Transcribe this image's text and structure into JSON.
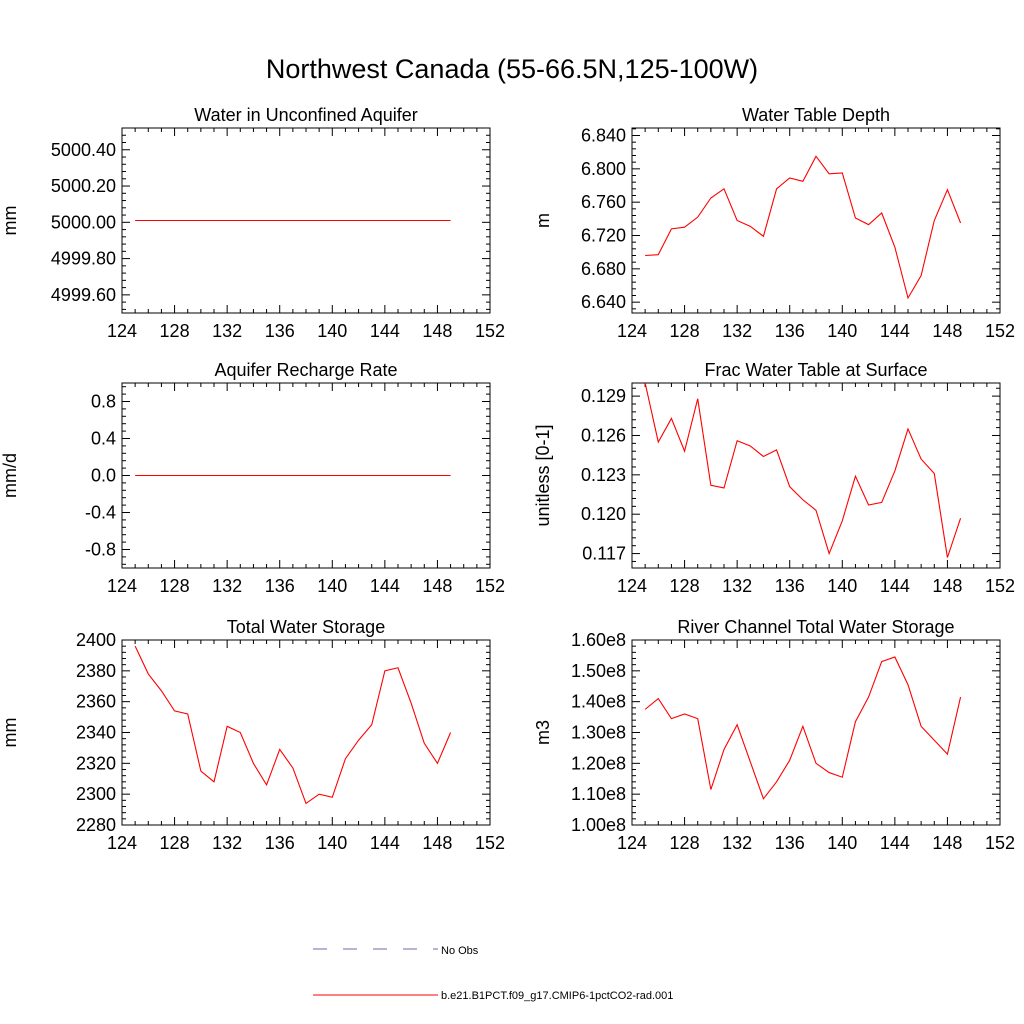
{
  "figure": {
    "title": "Northwest Canada (55-66.5N,125-100W)",
    "legend": {
      "obs_label": "No Obs",
      "model_label": "b.e21.B1PCT.f09_g17.CMIP6-1pctCO2-rad.001",
      "model_color": "#ff0000",
      "obs_color": "#6a6aa8"
    }
  },
  "chart_data": [
    {
      "type": "line",
      "title": "Water in Unconfined Aquifer",
      "ylabel": "mm",
      "xlim": [
        124,
        152
      ],
      "xticks": [
        124,
        128,
        132,
        136,
        140,
        144,
        148,
        152
      ],
      "ylim": [
        4999.5,
        5000.52
      ],
      "yticks": [
        4999.6,
        4999.8,
        5000.0,
        5000.2,
        5000.4
      ],
      "ytick_labels": [
        "4999.60",
        "4999.80",
        "5000.00",
        "5000.20",
        "5000.40"
      ],
      "series": [
        {
          "x": [
            125,
            126,
            127,
            128,
            129,
            130,
            131,
            132,
            133,
            134,
            135,
            136,
            137,
            138,
            139,
            140,
            141,
            142,
            143,
            144,
            145,
            146,
            147,
            148,
            149
          ],
          "values": [
            5000.01,
            5000.01,
            5000.01,
            5000.01,
            5000.01,
            5000.01,
            5000.01,
            5000.01,
            5000.01,
            5000.01,
            5000.01,
            5000.01,
            5000.01,
            5000.01,
            5000.01,
            5000.01,
            5000.01,
            5000.01,
            5000.01,
            5000.01,
            5000.01,
            5000.01,
            5000.01,
            5000.01,
            5000.01
          ]
        }
      ]
    },
    {
      "type": "line",
      "title": "Water Table Depth",
      "ylabel": "m",
      "xlim": [
        124,
        152
      ],
      "xticks": [
        124,
        128,
        132,
        136,
        140,
        144,
        148,
        152
      ],
      "ylim": [
        6.627,
        6.849
      ],
      "yticks": [
        6.64,
        6.68,
        6.72,
        6.76,
        6.8,
        6.84
      ],
      "ytick_labels": [
        "6.640",
        "6.680",
        "6.720",
        "6.760",
        "6.800",
        "6.840"
      ],
      "series": [
        {
          "x": [
            125,
            126,
            127,
            128,
            129,
            130,
            131,
            132,
            133,
            134,
            135,
            136,
            137,
            138,
            139,
            140,
            141,
            142,
            143,
            144,
            145,
            146,
            147,
            148,
            149
          ],
          "values": [
            6.696,
            6.697,
            6.728,
            6.73,
            6.742,
            6.765,
            6.776,
            6.738,
            6.731,
            6.719,
            6.776,
            6.789,
            6.785,
            6.815,
            6.794,
            6.795,
            6.741,
            6.733,
            6.747,
            6.706,
            6.645,
            6.672,
            6.738,
            6.775,
            6.735
          ]
        }
      ]
    },
    {
      "type": "line",
      "title": "Aquifer Recharge Rate",
      "ylabel": "mm/d",
      "xlim": [
        124,
        152
      ],
      "xticks": [
        124,
        128,
        132,
        136,
        140,
        144,
        148,
        152
      ],
      "ylim": [
        -1.0,
        1.0
      ],
      "yticks": [
        -0.8,
        -0.4,
        0.0,
        0.4,
        0.8
      ],
      "ytick_labels": [
        "-0.8",
        "-0.4",
        "0.0",
        "0.4",
        "0.8"
      ],
      "series": [
        {
          "x": [
            125,
            126,
            127,
            128,
            129,
            130,
            131,
            132,
            133,
            134,
            135,
            136,
            137,
            138,
            139,
            140,
            141,
            142,
            143,
            144,
            145,
            146,
            147,
            148,
            149
          ],
          "values": [
            0,
            0,
            0,
            0,
            0,
            0,
            0,
            0,
            0,
            0,
            0,
            0,
            0,
            0,
            0,
            0,
            0,
            0,
            0,
            0,
            0,
            0,
            0,
            0,
            0
          ]
        }
      ]
    },
    {
      "type": "line",
      "title": "Frac Water Table at Surface",
      "ylabel": "unitless [0-1]",
      "xlim": [
        124,
        152
      ],
      "xticks": [
        124,
        128,
        132,
        136,
        140,
        144,
        148,
        152
      ],
      "ylim": [
        0.1159,
        0.13
      ],
      "yticks": [
        0.117,
        0.12,
        0.123,
        0.126,
        0.129
      ],
      "ytick_labels": [
        "0.117",
        "0.120",
        "0.123",
        "0.126",
        "0.129"
      ],
      "series": [
        {
          "x": [
            125,
            126,
            127,
            128,
            129,
            130,
            131,
            132,
            133,
            134,
            135,
            136,
            137,
            138,
            139,
            140,
            141,
            142,
            143,
            144,
            145,
            146,
            147,
            148,
            149
          ],
          "values": [
            0.13,
            0.1255,
            0.1273,
            0.1248,
            0.1288,
            0.1222,
            0.122,
            0.1256,
            0.1252,
            0.1244,
            0.1249,
            0.1221,
            0.1211,
            0.1203,
            0.117,
            0.1195,
            0.1229,
            0.1207,
            0.1209,
            0.1233,
            0.1265,
            0.1242,
            0.1231,
            0.1167,
            0.1197
          ]
        }
      ]
    },
    {
      "type": "line",
      "title": "Total Water Storage",
      "ylabel": "mm",
      "xlim": [
        124,
        152
      ],
      "xticks": [
        124,
        128,
        132,
        136,
        140,
        144,
        148,
        152
      ],
      "ylim": [
        2280,
        2400
      ],
      "yticks": [
        2280,
        2300,
        2320,
        2340,
        2360,
        2380,
        2400
      ],
      "ytick_labels": [
        "2280",
        "2300",
        "2320",
        "2340",
        "2360",
        "2380",
        "2400"
      ],
      "series": [
        {
          "x": [
            125,
            126,
            127,
            128,
            129,
            130,
            131,
            132,
            133,
            134,
            135,
            136,
            137,
            138,
            139,
            140,
            141,
            142,
            143,
            144,
            145,
            146,
            147,
            148,
            149
          ],
          "values": [
            2396,
            2378,
            2367,
            2354,
            2352,
            2315,
            2308,
            2344,
            2340,
            2320,
            2306,
            2329,
            2317,
            2294,
            2300,
            2298,
            2323,
            2335,
            2345,
            2380,
            2382,
            2359,
            2333,
            2320,
            2340
          ]
        }
      ]
    },
    {
      "type": "line",
      "title": "River Channel Total Water Storage",
      "ylabel": "m3",
      "xlim": [
        124,
        152
      ],
      "xticks": [
        124,
        128,
        132,
        136,
        140,
        144,
        148,
        152
      ],
      "ylim": [
        100000000.0,
        160000000.0
      ],
      "yticks": [
        100000000.0,
        110000000.0,
        120000000.0,
        130000000.0,
        140000000.0,
        150000000.0,
        160000000.0
      ],
      "ytick_labels": [
        "1.00e8",
        "1.10e8",
        "1.20e8",
        "1.30e8",
        "1.40e8",
        "1.50e8",
        "1.60e8"
      ],
      "series": [
        {
          "x": [
            125,
            126,
            127,
            128,
            129,
            130,
            131,
            132,
            133,
            134,
            135,
            136,
            137,
            138,
            139,
            140,
            141,
            142,
            143,
            144,
            145,
            146,
            147,
            148,
            149
          ],
          "values": [
            137500000.0,
            141000000.0,
            134500000.0,
            136000000.0,
            134500000.0,
            111500000.0,
            124500000.0,
            132500000.0,
            120500000.0,
            108500000.0,
            114000000.0,
            121000000.0,
            132000000.0,
            120000000.0,
            117000000.0,
            115500000.0,
            133500000.0,
            141500000.0,
            153000000.0,
            154500000.0,
            145500000.0,
            132000000.0,
            127500000.0,
            123000000.0,
            141500000.0
          ]
        }
      ]
    }
  ]
}
